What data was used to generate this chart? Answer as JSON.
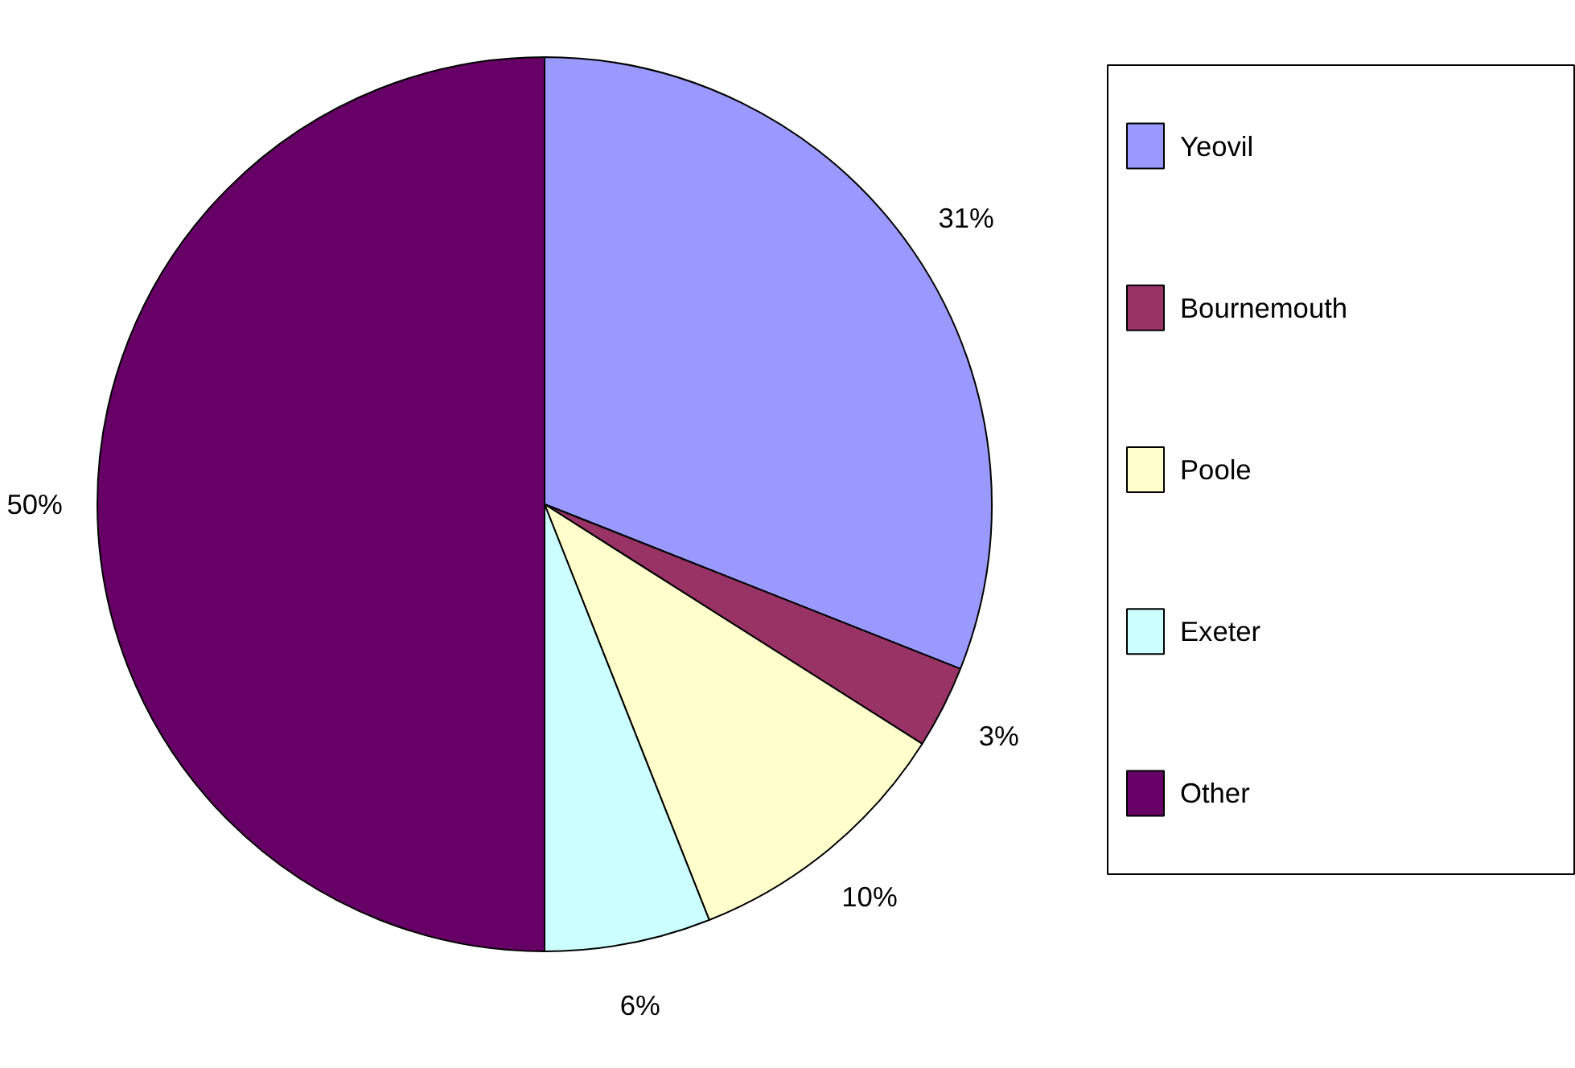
{
  "chart_data": {
    "type": "pie",
    "categories": [
      "Yeovil",
      "Bournemouth",
      "Poole",
      "Exeter",
      "Other"
    ],
    "values": [
      31,
      3,
      10,
      6,
      50
    ],
    "colors": [
      "#9999ff",
      "#993366",
      "#ffffcc",
      "#ccffff",
      "#660066"
    ],
    "value_labels": [
      "31%",
      "3%",
      "10%",
      "6%",
      "50%"
    ],
    "legend": "right"
  }
}
